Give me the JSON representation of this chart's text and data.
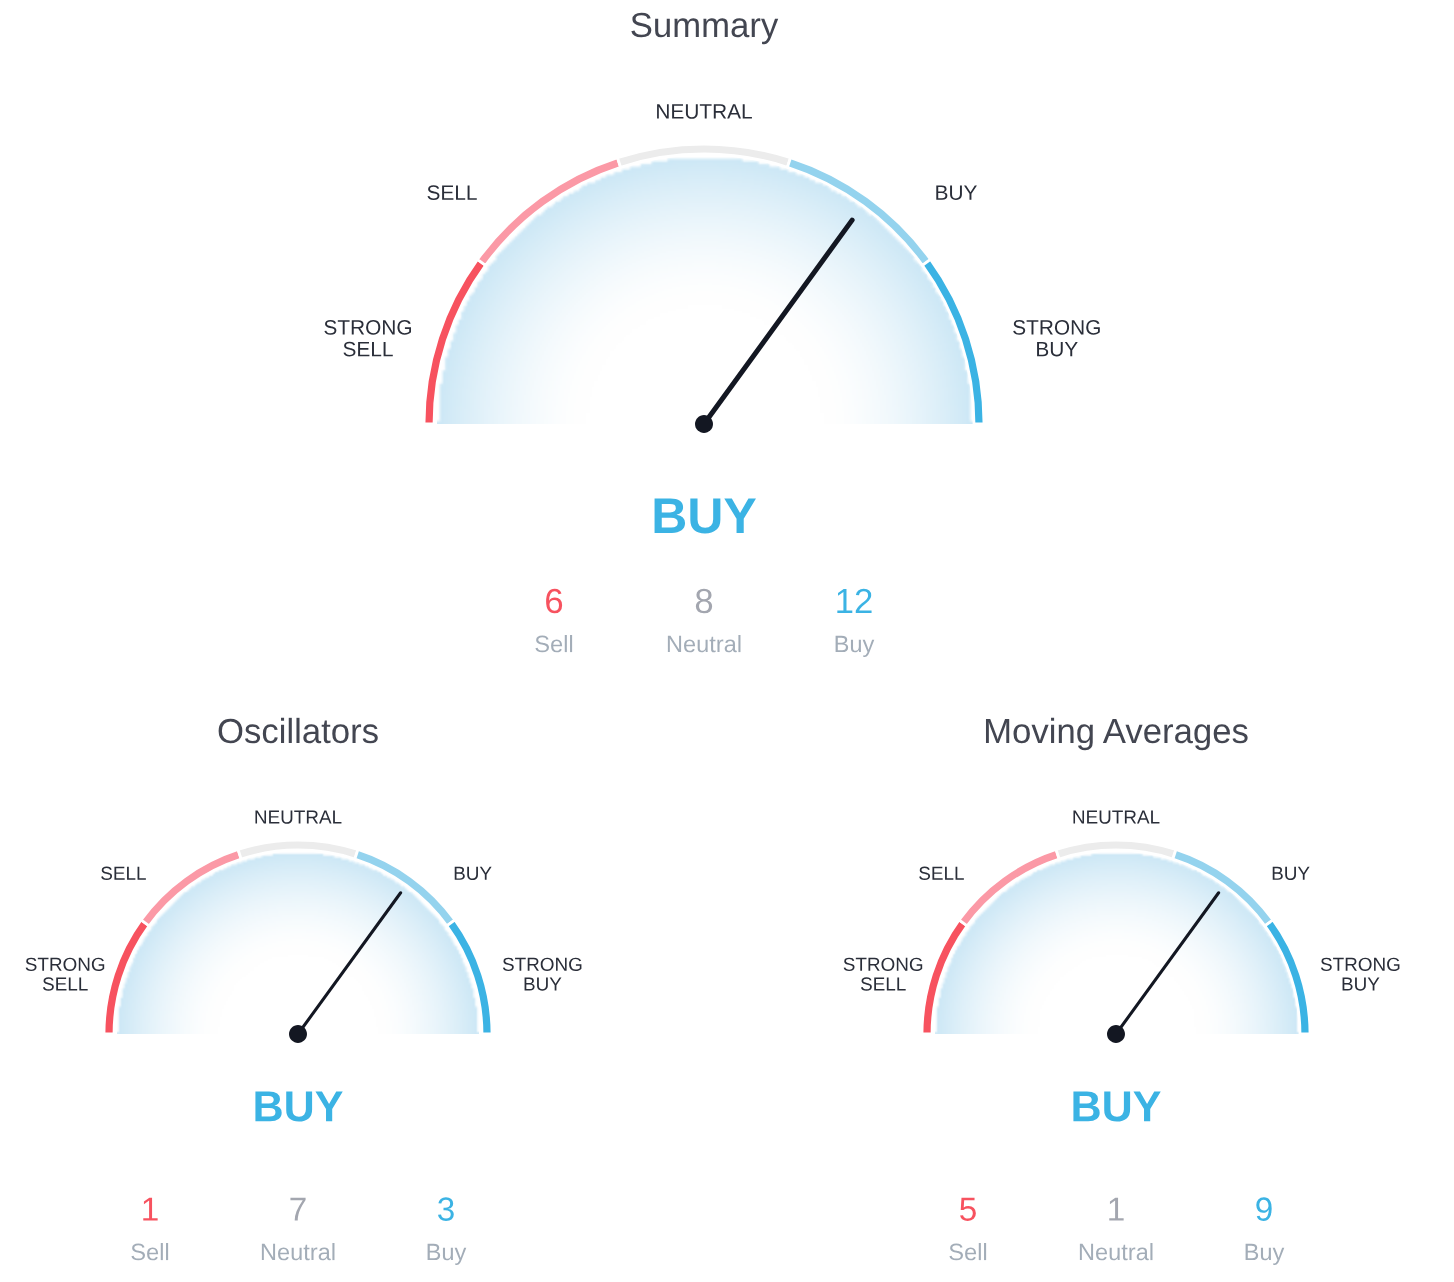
{
  "chart_data": [
    {
      "type": "donut",
      "title": "Summary",
      "categories": [
        "STRONG SELL",
        "SELL",
        "NEUTRAL",
        "BUY",
        "STRONG BUY"
      ],
      "values": [
        20,
        20,
        20,
        20,
        20
      ],
      "colors": [
        "#f7525f",
        "#fb99a6",
        "#ececec",
        "#94d3ee",
        "#3bb3e4"
      ],
      "needle": "BUY",
      "annotations": [
        "BUY",
        "6",
        "Sell",
        "8",
        "Neutral",
        "12",
        "Buy"
      ]
    },
    {
      "type": "donut",
      "title": "Oscillators",
      "categories": [
        "STRONG SELL",
        "SELL",
        "NEUTRAL",
        "BUY",
        "STRONG BUY"
      ],
      "values": [
        20,
        20,
        20,
        20,
        20
      ],
      "colors": [
        "#f7525f",
        "#fb99a6",
        "#ececec",
        "#94d3ee",
        "#3bb3e4"
      ],
      "needle": "BUY",
      "annotations": [
        "BUY",
        "1",
        "Sell",
        "7",
        "Neutral",
        "3",
        "Buy"
      ]
    },
    {
      "type": "donut",
      "title": "Moving Averages",
      "categories": [
        "STRONG SELL",
        "SELL",
        "NEUTRAL",
        "BUY",
        "STRONG BUY"
      ],
      "values": [
        20,
        20,
        20,
        20,
        20
      ],
      "colors": [
        "#f7525f",
        "#fb99a6",
        "#ececec",
        "#94d3ee",
        "#3bb3e4"
      ],
      "needle": "BUY",
      "annotations": [
        "BUY",
        "5",
        "Sell",
        "1",
        "Neutral",
        "9",
        "Buy"
      ]
    }
  ]
}
